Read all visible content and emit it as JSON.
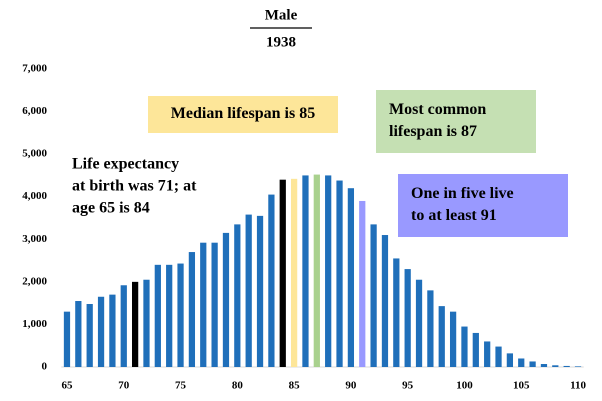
{
  "chart_data": {
    "type": "bar",
    "title": "Male",
    "subtitle": "1938",
    "x": [
      65,
      66,
      67,
      68,
      69,
      70,
      71,
      72,
      73,
      74,
      75,
      76,
      77,
      78,
      79,
      80,
      81,
      82,
      83,
      84,
      85,
      86,
      87,
      88,
      89,
      90,
      91,
      92,
      93,
      94,
      95,
      96,
      97,
      98,
      99,
      100,
      101,
      102,
      103,
      104,
      105,
      106,
      107,
      108,
      109,
      110
    ],
    "values": [
      1300,
      1550,
      1480,
      1650,
      1700,
      1920,
      2000,
      2050,
      2400,
      2400,
      2430,
      2700,
      2920,
      2920,
      3150,
      3350,
      3580,
      3550,
      4050,
      4400,
      4420,
      4500,
      4520,
      4500,
      4380,
      4200,
      3900,
      3350,
      3100,
      2550,
      2300,
      2050,
      1800,
      1430,
      1300,
      950,
      800,
      600,
      480,
      320,
      200,
      130,
      70,
      40,
      25,
      15
    ],
    "colors": [
      "#1f6fba",
      "#1f6fba",
      "#1f6fba",
      "#1f6fba",
      "#1f6fba",
      "#1f6fba",
      "#000000",
      "#1f6fba",
      "#1f6fba",
      "#1f6fba",
      "#1f6fba",
      "#1f6fba",
      "#1f6fba",
      "#1f6fba",
      "#1f6fba",
      "#1f6fba",
      "#1f6fba",
      "#1f6fba",
      "#1f6fba",
      "#000000",
      "#fde699",
      "#1f6fba",
      "#a9d18e",
      "#1f6fba",
      "#1f6fba",
      "#1f6fba",
      "#9999ff",
      "#1f6fba",
      "#1f6fba",
      "#1f6fba",
      "#1f6fba",
      "#1f6fba",
      "#1f6fba",
      "#1f6fba",
      "#1f6fba",
      "#1f6fba",
      "#1f6fba",
      "#1f6fba",
      "#1f6fba",
      "#1f6fba",
      "#1f6fba",
      "#1f6fba",
      "#1f6fba",
      "#1f6fba",
      "#1f6fba",
      "#1f6fba"
    ],
    "xlim": [
      64.5,
      110.5
    ],
    "xticks": [
      65,
      70,
      75,
      80,
      85,
      90,
      95,
      100,
      105,
      110
    ],
    "ylim": [
      0,
      7000
    ],
    "yticks": [
      0,
      {
        "value": 1000,
        "label": "1,000"
      },
      {
        "value": 2000,
        "label": "2,000"
      },
      {
        "value": 3000,
        "label": "3,000"
      },
      {
        "value": 4000,
        "label": "4,000"
      },
      {
        "value": 5000,
        "label": "5,000"
      },
      {
        "value": 6000,
        "label": "6,000"
      },
      {
        "value": 7000,
        "label": "7,000"
      }
    ],
    "annotations": [
      {
        "lines": [
          "Life expectancy",
          "at birth was 71; at",
          "age 65 is 84"
        ]
      },
      {
        "lines": [
          "Median lifespan is 85"
        ],
        "color": "#fde699"
      },
      {
        "lines": [
          "Most common",
          "lifespan is 87"
        ],
        "color": "#c5e0b3"
      },
      {
        "lines": [
          "One in five live",
          "to at least 91"
        ],
        "color": "#9999ff"
      }
    ]
  }
}
